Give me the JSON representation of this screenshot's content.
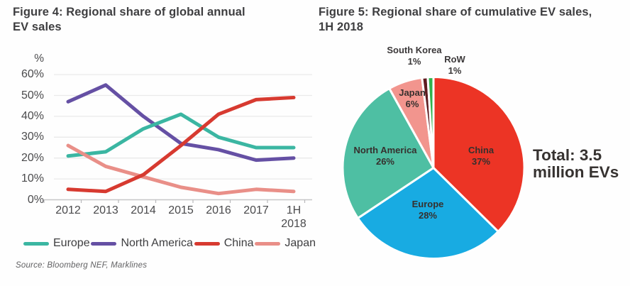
{
  "figure4": {
    "title": "Figure 4: Regional share of global annual\nEV sales",
    "y_axis_unit": "%",
    "source": "Source: Bloomberg NEF, Marklines"
  },
  "figure5": {
    "title": "Figure 5: Regional share of cumulative EV sales,\n1H 2018",
    "total_label": "Total: 3.5\nmillion EVs"
  },
  "chart_data": [
    {
      "type": "line",
      "title": "Figure 4: Regional share of global annual EV sales",
      "categories": [
        "2012",
        "2013",
        "2014",
        "2015",
        "2016",
        "2017",
        "1H 2018"
      ],
      "series": [
        {
          "name": "Europe",
          "color": "#3bb6a2",
          "values": [
            21,
            23,
            34,
            41,
            30,
            25,
            25
          ]
        },
        {
          "name": "North America",
          "color": "#6550a4",
          "values": [
            47,
            55,
            40,
            27,
            24,
            19,
            20
          ]
        },
        {
          "name": "China",
          "color": "#d73a30",
          "values": [
            5,
            4,
            12,
            26,
            41,
            48,
            49
          ]
        },
        {
          "name": "Japan",
          "color": "#e98f88",
          "values": [
            26,
            16,
            11,
            6,
            3,
            5,
            4
          ]
        }
      ],
      "ylabel": "%",
      "ylim": [
        0,
        60
      ],
      "y_ticks": [
        60,
        50,
        40,
        30,
        20,
        10,
        0
      ],
      "grid": true,
      "legend_position": "bottom",
      "source": "Source: Bloomberg NEF, Marklines"
    },
    {
      "type": "pie",
      "title": "Figure 5: Regional share of cumulative EV sales, 1H 2018",
      "slices": [
        {
          "name": "China",
          "pct": 37,
          "color": "#ec3425",
          "label_pos": "inside"
        },
        {
          "name": "Europe",
          "pct": 28,
          "color": "#18abe2",
          "label_pos": "inside"
        },
        {
          "name": "North America",
          "pct": 26,
          "color": "#4ebfa3",
          "label_pos": "inside"
        },
        {
          "name": "Japan",
          "pct": 6,
          "color": "#f2958e",
          "label_pos": "inside"
        },
        {
          "name": "South Korea",
          "pct": 1,
          "color": "#5f1c20",
          "label_pos": "outside"
        },
        {
          "name": "RoW",
          "pct": 1,
          "color": "#2fb34c",
          "label_pos": "outside"
        }
      ],
      "start_angle": "top",
      "direction": "clockwise",
      "annotation": "Total: 3.5 million EVs"
    }
  ]
}
